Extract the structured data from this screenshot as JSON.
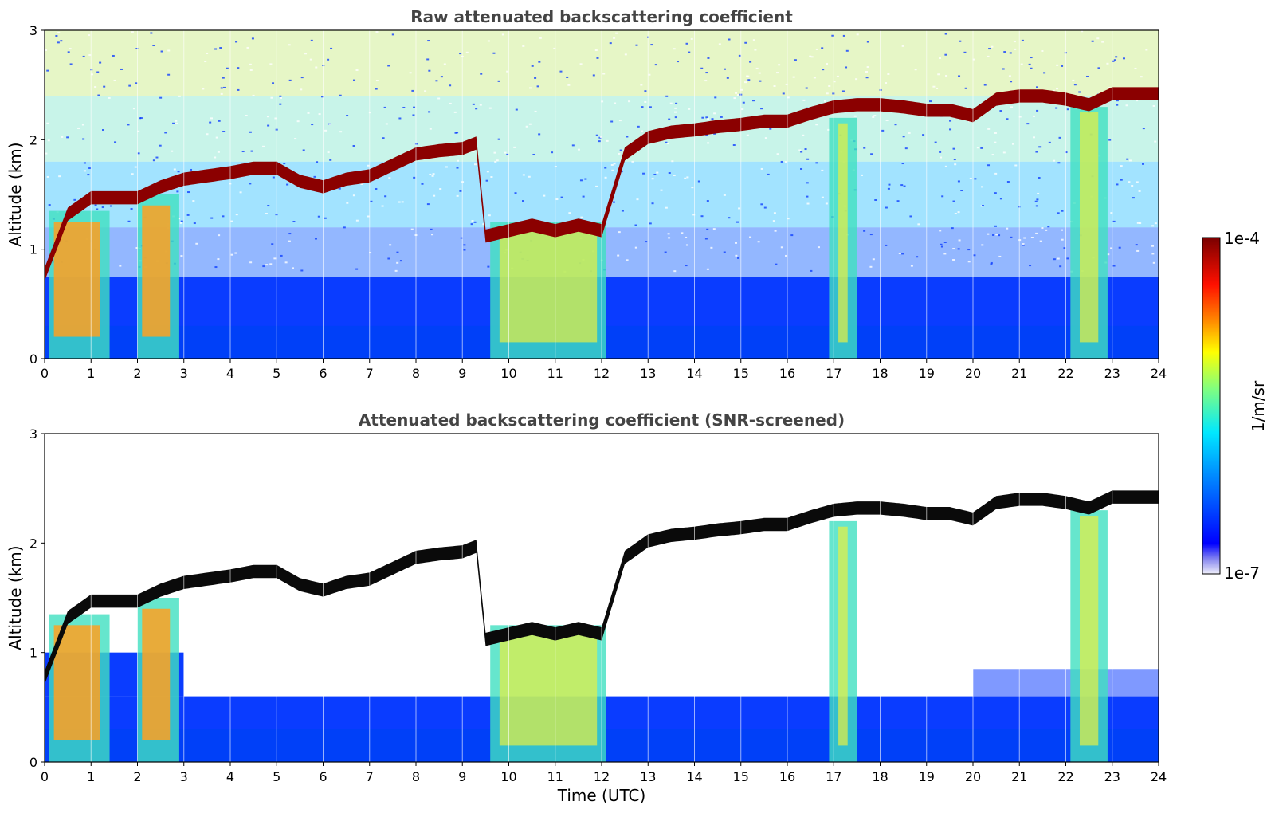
{
  "chart_data": [
    {
      "type": "heatmap",
      "title": "Raw attenuated backscattering coefficient",
      "xlabel": "",
      "ylabel": "Altitude (km)",
      "xlim": [
        0,
        24
      ],
      "ylim": [
        0,
        3
      ],
      "xticks": [
        "0",
        "1",
        "2",
        "3",
        "4",
        "5",
        "6",
        "7",
        "8",
        "9",
        "10",
        "11",
        "12",
        "13",
        "14",
        "15",
        "16",
        "17",
        "18",
        "19",
        "20",
        "21",
        "22",
        "23",
        "24"
      ],
      "yticks": [
        "0",
        "1",
        "2",
        "3"
      ],
      "cloud_base_km": {
        "time_utc": [
          0,
          0.5,
          1,
          1.5,
          2,
          2.5,
          3,
          3.5,
          4,
          4.5,
          5,
          5.5,
          6,
          6.5,
          7,
          7.5,
          8,
          8.5,
          9,
          9.3,
          9.5,
          10,
          10.5,
          11,
          11.5,
          12,
          12.5,
          13,
          13.5,
          14,
          14.5,
          15,
          15.5,
          16,
          16.5,
          17,
          17.5,
          18,
          18.5,
          19,
          19.5,
          20,
          20.5,
          21,
          21.5,
          22,
          22.5,
          23,
          23.5,
          23.9
        ],
        "altitude_km": [
          0.75,
          1.3,
          1.45,
          1.45,
          1.45,
          1.55,
          1.62,
          1.65,
          1.68,
          1.72,
          1.72,
          1.6,
          1.55,
          1.62,
          1.65,
          1.75,
          1.85,
          1.88,
          1.9,
          1.95,
          1.1,
          1.15,
          1.2,
          1.15,
          1.2,
          1.15,
          1.85,
          2.0,
          2.05,
          2.07,
          2.1,
          2.12,
          2.15,
          2.15,
          2.22,
          2.28,
          2.3,
          2.3,
          2.28,
          2.25,
          2.25,
          2.2,
          2.35,
          2.38,
          2.38,
          2.35,
          2.3,
          2.4,
          2.4,
          2.4
        ]
      }
    },
    {
      "type": "heatmap",
      "title": "Attenuated backscattering coefficient (SNR-screened)",
      "xlabel": "Time (UTC)",
      "ylabel": "Altitude (km)",
      "xlim": [
        0,
        24
      ],
      "ylim": [
        0,
        3
      ],
      "xticks": [
        "0",
        "1",
        "2",
        "3",
        "4",
        "5",
        "6",
        "7",
        "8",
        "9",
        "10",
        "11",
        "12",
        "13",
        "14",
        "15",
        "16",
        "17",
        "18",
        "19",
        "20",
        "21",
        "22",
        "23",
        "24"
      ],
      "yticks": [
        "0",
        "1",
        "2",
        "3"
      ]
    }
  ],
  "colorbar": {
    "label": "1/m/sr",
    "max_label": "1e-4",
    "min_label": "1e-7",
    "colors": [
      "#e8e8f8",
      "#0000ff",
      "#0080ff",
      "#00e0ff",
      "#80ff80",
      "#ffff00",
      "#ff8000",
      "#ff0000",
      "#800000"
    ]
  }
}
